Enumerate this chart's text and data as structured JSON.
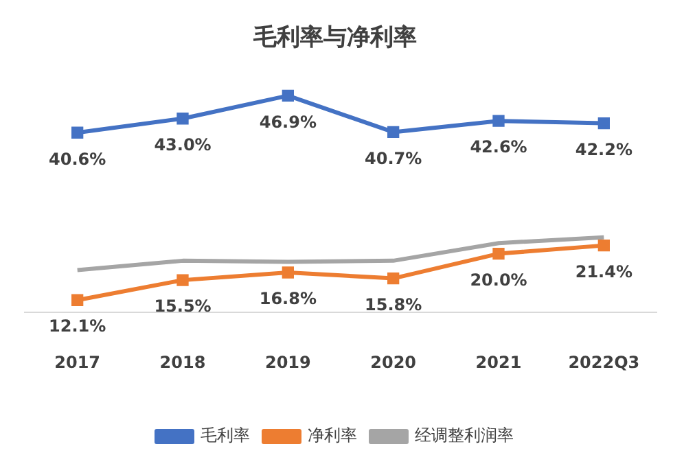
{
  "chart_data": {
    "type": "line",
    "title": "毛利率与净利率",
    "categories": [
      "2017",
      "2018",
      "2019",
      "2020",
      "2021",
      "2022Q3"
    ],
    "series": [
      {
        "name": "毛利率",
        "color": "#4472c4",
        "marker": "square",
        "values": [
          40.6,
          43.0,
          46.9,
          40.7,
          42.6,
          42.2
        ],
        "value_labels": [
          "40.6%",
          "43.0%",
          "46.9%",
          "40.7%",
          "42.6%",
          "42.2%"
        ]
      },
      {
        "name": "净利率",
        "color": "#ed7d31",
        "marker": "square",
        "values": [
          12.1,
          15.5,
          16.8,
          15.8,
          20.0,
          21.4
        ],
        "value_labels": [
          "12.1%",
          "15.5%",
          "16.8%",
          "15.8%",
          "20.0%",
          "21.4%"
        ]
      },
      {
        "name": "经调整利润率",
        "color": "#a5a5a5",
        "marker": "none",
        "values": [
          17.2,
          18.8,
          18.6,
          18.8,
          21.8,
          22.8
        ]
      }
    ],
    "tick_labels": "x",
    "grid": false,
    "legend": "bottom"
  }
}
